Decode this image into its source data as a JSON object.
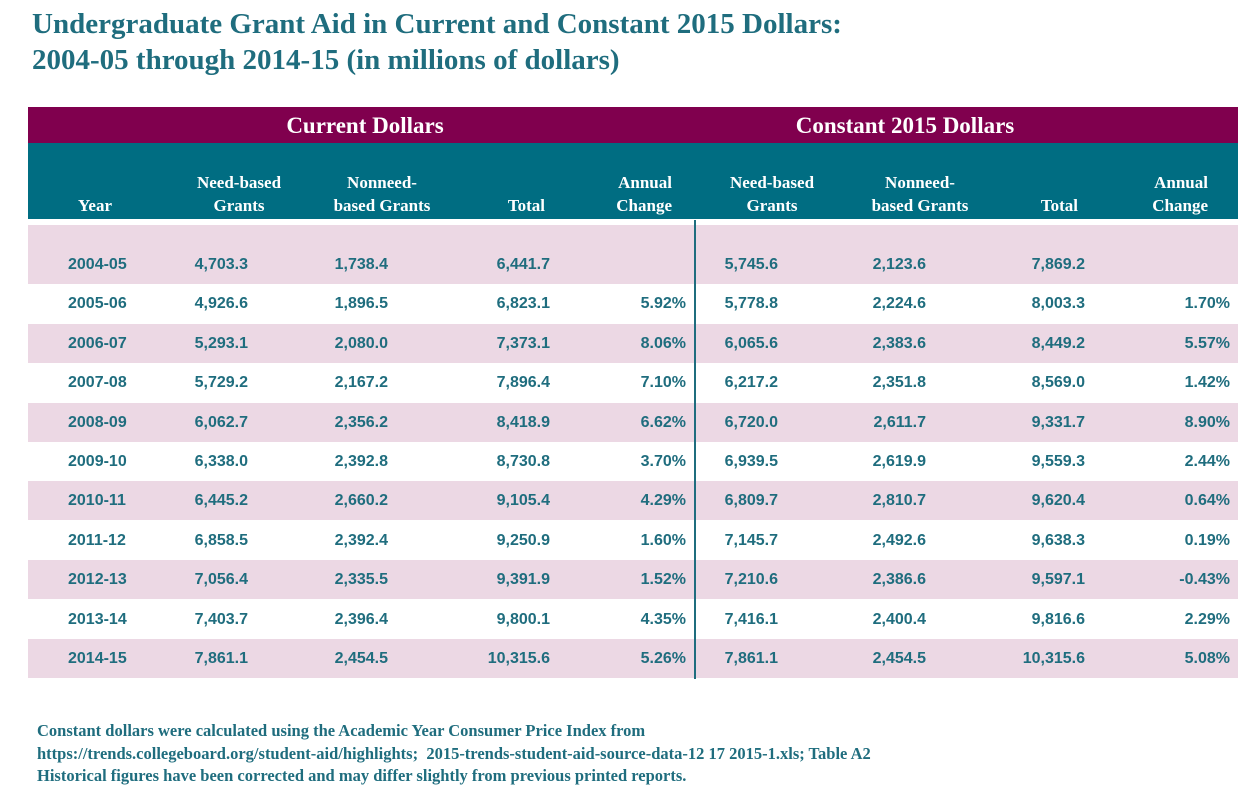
{
  "title": {
    "line1": "Undergraduate Grant Aid in Current and Constant 2015 Dollars:",
    "line2": "2004-05 through 2014-15 (in millions of dollars)"
  },
  "groups": [
    "Current Dollars",
    "Constant 2015 Dollars"
  ],
  "headers": {
    "year": "Year",
    "need1": "Need-based",
    "need2": "Grants",
    "nonneed1": "Nonneed-",
    "nonneed2": "based Grants",
    "total": "Total",
    "annual1": "Annual",
    "annual2": "Change"
  },
  "chart_data": {
    "type": "table",
    "title": "Undergraduate Grant Aid in Current and Constant 2015 Dollars: 2004-05 through 2014-15 (in millions of dollars)",
    "columns": [
      "Year",
      "Current Need-based Grants",
      "Current Nonneed-based Grants",
      "Current Total",
      "Current Annual Change",
      "Constant Need-based Grants",
      "Constant Nonneed-based Grants",
      "Constant Total",
      "Constant Annual Change"
    ],
    "rows": [
      [
        "2004-05",
        "4,703.3",
        "1,738.4",
        "6,441.7",
        "",
        "5,745.6",
        "2,123.6",
        "7,869.2",
        ""
      ],
      [
        "2005-06",
        "4,926.6",
        "1,896.5",
        "6,823.1",
        "5.92%",
        "5,778.8",
        "2,224.6",
        "8,003.3",
        "1.70%"
      ],
      [
        "2006-07",
        "5,293.1",
        "2,080.0",
        "7,373.1",
        "8.06%",
        "6,065.6",
        "2,383.6",
        "8,449.2",
        "5.57%"
      ],
      [
        "2007-08",
        "5,729.2",
        "2,167.2",
        "7,896.4",
        "7.10%",
        "6,217.2",
        "2,351.8",
        "8,569.0",
        "1.42%"
      ],
      [
        "2008-09",
        "6,062.7",
        "2,356.2",
        "8,418.9",
        "6.62%",
        "6,720.0",
        "2,611.7",
        "9,331.7",
        "8.90%"
      ],
      [
        "2009-10",
        "6,338.0",
        "2,392.8",
        "8,730.8",
        "3.70%",
        "6,939.5",
        "2,619.9",
        "9,559.3",
        "2.44%"
      ],
      [
        "2010-11",
        "6,445.2",
        "2,660.2",
        "9,105.4",
        "4.29%",
        "6,809.7",
        "2,810.7",
        "9,620.4",
        "0.64%"
      ],
      [
        "2011-12",
        "6,858.5",
        "2,392.4",
        "9,250.9",
        "1.60%",
        "7,145.7",
        "2,492.6",
        "9,638.3",
        "0.19%"
      ],
      [
        "2012-13",
        "7,056.4",
        "2,335.5",
        "9,391.9",
        "1.52%",
        "7,210.6",
        "2,386.6",
        "9,597.1",
        "-0.43%"
      ],
      [
        "2013-14",
        "7,403.7",
        "2,396.4",
        "9,800.1",
        "4.35%",
        "7,416.1",
        "2,400.4",
        "9,816.6",
        "2.29%"
      ],
      [
        "2014-15",
        "7,861.1",
        "2,454.5",
        "10,315.6",
        "5.26%",
        "7,861.1",
        "2,454.5",
        "10,315.6",
        "5.08%"
      ]
    ]
  },
  "footer": {
    "line1": "Constant dollars were calculated using the Academic Year Consumer Price Index from",
    "line2": "https://trends.collegeboard.org/student-aid/highlights;  2015-trends-student-aid-source-data-12 17 2015-1.xls; Table A2",
    "line3": "Historical figures have been corrected and may differ slightly from previous printed reports."
  },
  "colors": {
    "title_text": "#1f6d7e",
    "group_bar": "#80004e",
    "header_bar": "#006d82",
    "row_shade": "#ecd8e4",
    "cell_text": "#1f6d7e"
  }
}
